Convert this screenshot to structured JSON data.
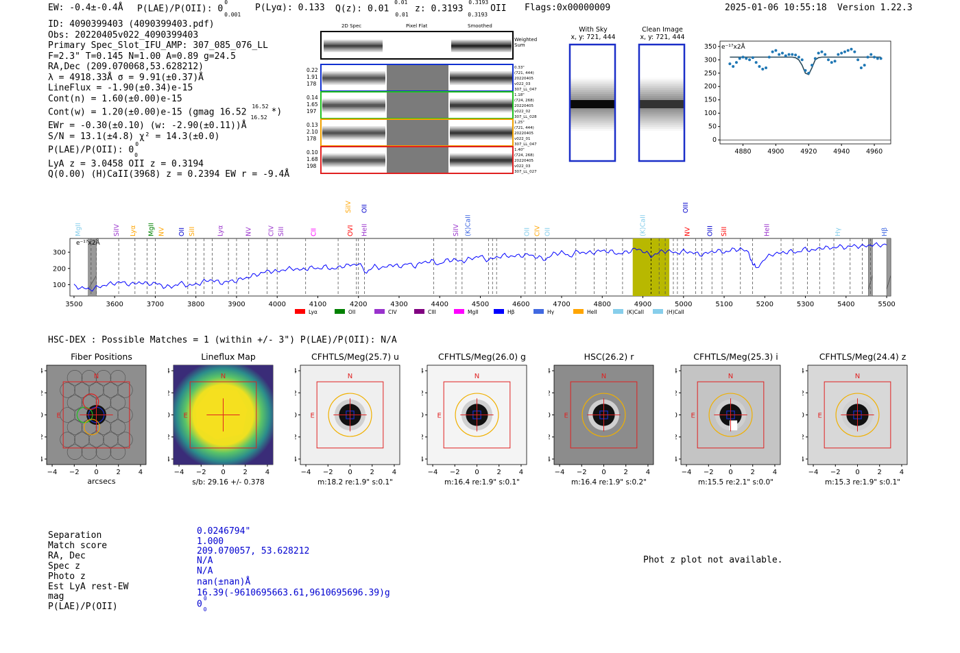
{
  "header": {
    "ew": "EW: -0.4±-0.4Å",
    "plae_label": "P(LAE)/P(OII): 0",
    "plae_sup": "0",
    "plae_sub": "0.001",
    "plya": "P(Lyα): 0.133",
    "qz": "Q(z): 0.01",
    "qz_sup": "0.01",
    "qz_sub": "0.01",
    "z": "z: 0.3193",
    "z_sup": "0.3193",
    "z_sub": "0.3193",
    "z_line": "OII",
    "flags": "Flags:0x00000009",
    "datetime": "2025-01-06 10:55:18",
    "version": "Version 1.22.3"
  },
  "info": {
    "id": "ID: 4090399403 (4090399403.pdf)",
    "obs": "Obs: 20220405v022_4090399403",
    "primary": "Primary Spec_Slot_IFU_AMP: 307_085_076_LL",
    "params": "F=2.3\"  T=0.145  N=1.00  A=0.89  g=24.5",
    "radec": "RA,Dec (209.070068,53.628212)",
    "lambda": "λ = 4918.33Å  σ = 9.91(±0.37)Å",
    "lineflux": "LineFlux = -1.90(±0.34)e-15",
    "contn": "Cont(n) = 1.60(±0.00)e-15",
    "contw": "Cont(w) = 1.20(±0.00)e-15 (gmag 16.52",
    "contw_sup": "16.52",
    "contw_sub": "16.52",
    "contw_end": "*)",
    "ewr": "EWr = -0.30(±0.10) (w: -2.90(±0.11))Å",
    "sn": "S/N = 13.1(±4.8)  χ² = 14.3(±0.0)",
    "plae": "P(LAE)/P(OII): 0",
    "plae_sup": "0",
    "plae_sub": "0",
    "lya_z": "LyA z = 3.0458  OII z = 0.3194",
    "qline": "Q(0.00) (H)CaII(3968) z = 0.2394  EW r = -9.4Å"
  },
  "spec2d": {
    "col_headers": [
      "2D Spec",
      "Pixel Flat",
      "Smoothed"
    ],
    "weighted_label": "Weighted Sum",
    "rows": [
      {
        "left": [
          "0.22",
          "1.91",
          "178"
        ],
        "right": [
          "0.33\"",
          "(721, 444)",
          "20220405",
          "v022_03",
          "307_LL_047"
        ],
        "color": "#1030d0"
      },
      {
        "left": [
          "0.14",
          "1.65",
          "197"
        ],
        "right": [
          "1.18\"",
          "(724, 268)",
          "20220405",
          "v022_02",
          "307_LL_028"
        ],
        "color": "#20c020"
      },
      {
        "left": [
          "0.13",
          "2.10",
          "178"
        ],
        "right": [
          "1.25\"",
          "(721, 444)",
          "20220405",
          "v022_01",
          "307_LL_047"
        ],
        "color": "#f0a000"
      },
      {
        "left": [
          "0.10",
          "1.68",
          "198"
        ],
        "right": [
          "1.40\"",
          "(724, 268)",
          "20220405",
          "v022_03",
          "307_LL_027"
        ],
        "color": "#e02020"
      }
    ]
  },
  "cutouts": {
    "with_sky": "With Sky",
    "with_sky_xy": "x, y: 721, 444",
    "clean": "Clean Image",
    "clean_xy": "x, y: 721, 444"
  },
  "zoom_chart": {
    "type": "line",
    "scale_label": "e⁻¹⁷x2Å",
    "x": [
      4872,
      4874,
      4876,
      4878,
      4880,
      4882,
      4884,
      4886,
      4888,
      4890,
      4892,
      4894,
      4896,
      4898,
      4900,
      4902,
      4904,
      4906,
      4908,
      4910,
      4912,
      4914,
      4916,
      4918,
      4920,
      4922,
      4924,
      4926,
      4928,
      4930,
      4932,
      4934,
      4936,
      4938,
      4940,
      4942,
      4944,
      4946,
      4948,
      4950,
      4952,
      4954,
      4956,
      4958,
      4960,
      4962,
      4964
    ],
    "values": [
      285,
      275,
      290,
      305,
      310,
      305,
      300,
      308,
      290,
      275,
      265,
      270,
      310,
      330,
      335,
      320,
      325,
      315,
      320,
      320,
      318,
      310,
      300,
      260,
      250,
      280,
      305,
      325,
      330,
      320,
      300,
      290,
      295,
      320,
      325,
      330,
      335,
      340,
      330,
      300,
      270,
      280,
      310,
      320,
      310,
      305,
      305
    ],
    "fit": [
      310,
      310,
      310,
      310,
      310,
      310,
      310,
      310,
      310,
      310,
      310,
      310,
      310,
      310,
      310,
      310,
      310,
      310,
      310,
      310,
      308,
      300,
      280,
      250,
      245,
      270,
      300,
      308,
      310,
      310,
      310,
      310,
      310,
      310,
      310,
      310,
      310,
      310,
      310,
      310,
      310,
      310,
      310,
      310,
      310,
      310,
      310
    ],
    "xticks": [
      4880,
      4900,
      4920,
      4940,
      4960
    ],
    "yticks": [
      0,
      50,
      100,
      150,
      200,
      250,
      300,
      350
    ],
    "xlim": [
      4866,
      4970
    ],
    "ylim": [
      -15,
      370
    ]
  },
  "full_chart": {
    "type": "line",
    "scale_label": "e⁻¹⁷x2Å",
    "xticks": [
      3500,
      3600,
      3700,
      3800,
      3900,
      4000,
      4100,
      4200,
      4300,
      4400,
      4500,
      4600,
      4700,
      4800,
      4900,
      5000,
      5100,
      5200,
      5300,
      5400,
      5500
    ],
    "yticks": [
      100,
      200,
      300
    ],
    "xlim": [
      3490,
      5510
    ],
    "ylim": [
      30,
      385
    ],
    "highlight": [
      4875,
      4965
    ],
    "masks": [
      [
        3535,
        3555
      ],
      [
        5455,
        5465
      ],
      [
        5500,
        5510
      ]
    ],
    "anchors": [
      [
        3500,
        90
      ],
      [
        3520,
        80
      ],
      [
        3540,
        70
      ],
      [
        3560,
        85
      ],
      [
        3580,
        100
      ],
      [
        3600,
        110
      ],
      [
        3620,
        115
      ],
      [
        3640,
        100
      ],
      [
        3660,
        115
      ],
      [
        3680,
        105
      ],
      [
        3700,
        110
      ],
      [
        3720,
        90
      ],
      [
        3740,
        85
      ],
      [
        3760,
        110
      ],
      [
        3780,
        95
      ],
      [
        3800,
        100
      ],
      [
        3820,
        120
      ],
      [
        3840,
        130
      ],
      [
        3860,
        110
      ],
      [
        3880,
        120
      ],
      [
        3900,
        125
      ],
      [
        3920,
        140
      ],
      [
        3940,
        155
      ],
      [
        3960,
        170
      ],
      [
        3980,
        185
      ],
      [
        4000,
        180
      ],
      [
        4020,
        195
      ],
      [
        4040,
        200
      ],
      [
        4060,
        190
      ],
      [
        4080,
        205
      ],
      [
        4100,
        200
      ],
      [
        4120,
        210
      ],
      [
        4140,
        195
      ],
      [
        4160,
        215
      ],
      [
        4180,
        220
      ],
      [
        4200,
        230
      ],
      [
        4220,
        175
      ],
      [
        4240,
        215
      ],
      [
        4260,
        200
      ],
      [
        4280,
        225
      ],
      [
        4300,
        210
      ],
      [
        4320,
        230
      ],
      [
        4340,
        215
      ],
      [
        4360,
        240
      ],
      [
        4380,
        245
      ],
      [
        4400,
        225
      ],
      [
        4420,
        255
      ],
      [
        4440,
        250
      ],
      [
        4460,
        245
      ],
      [
        4480,
        265
      ],
      [
        4500,
        275
      ],
      [
        4520,
        250
      ],
      [
        4540,
        270
      ],
      [
        4560,
        280
      ],
      [
        4580,
        275
      ],
      [
        4600,
        280
      ],
      [
        4620,
        285
      ],
      [
        4640,
        270
      ],
      [
        4660,
        255
      ],
      [
        4680,
        290
      ],
      [
        4700,
        300
      ],
      [
        4720,
        275
      ],
      [
        4740,
        305
      ],
      [
        4760,
        295
      ],
      [
        4780,
        300
      ],
      [
        4800,
        310
      ],
      [
        4820,
        305
      ],
      [
        4840,
        290
      ],
      [
        4860,
        300
      ],
      [
        4880,
        320
      ],
      [
        4900,
        310
      ],
      [
        4920,
        275
      ],
      [
        4940,
        300
      ],
      [
        4960,
        310
      ],
      [
        4980,
        295
      ],
      [
        5000,
        305
      ],
      [
        5020,
        300
      ],
      [
        5040,
        285
      ],
      [
        5060,
        295
      ],
      [
        5080,
        310
      ],
      [
        5100,
        300
      ],
      [
        5120,
        315
      ],
      [
        5140,
        320
      ],
      [
        5160,
        300
      ],
      [
        5170,
        230
      ],
      [
        5180,
        200
      ],
      [
        5200,
        260
      ],
      [
        5220,
        290
      ],
      [
        5240,
        295
      ],
      [
        5260,
        305
      ],
      [
        5280,
        300
      ],
      [
        5300,
        320
      ],
      [
        5320,
        310
      ],
      [
        5340,
        330
      ],
      [
        5360,
        325
      ],
      [
        5380,
        335
      ],
      [
        5400,
        330
      ],
      [
        5420,
        340
      ],
      [
        5440,
        335
      ],
      [
        5460,
        345
      ],
      [
        5480,
        345
      ],
      [
        5500,
        345
      ]
    ],
    "lines": [
      {
        "label": "MgII",
        "x": 3510,
        "color": "#87ceeb",
        "row": 0
      },
      {
        "label": "SiIV",
        "x": 3605,
        "color": "#9932cc",
        "row": 0
      },
      {
        "label": "Lyα",
        "x": 3645,
        "color": "#ffa500",
        "row": 0
      },
      {
        "label": "MgII",
        "x": 3690,
        "color": "#008000",
        "row": 0
      },
      {
        "label": "NV",
        "x": 3715,
        "color": "#ffa500",
        "row": 0
      },
      {
        "label": "OII",
        "x": 3765,
        "color": "#0000cd",
        "row": 0
      },
      {
        "label": "SiII",
        "x": 3790,
        "color": "#ffa500",
        "row": 0
      },
      {
        "label": "Lyα",
        "x": 3860,
        "color": "#9932cc",
        "row": 0
      },
      {
        "label": "NV",
        "x": 3930,
        "color": "#9932cc",
        "row": 0
      },
      {
        "label": "CIV",
        "x": 3985,
        "color": "#9932cc",
        "row": 0
      },
      {
        "label": "SiII",
        "x": 4010,
        "color": "#9932cc",
        "row": 0
      },
      {
        "label": "CII",
        "x": 4090,
        "color": "#ff00ff",
        "row": 0
      },
      {
        "label": "SiIV",
        "x": 4175,
        "color": "#ffa500",
        "row": 1
      },
      {
        "label": "OII",
        "x": 4215,
        "color": "#0000cd",
        "row": 1
      },
      {
        "label": "OVI",
        "x": 4180,
        "color": "#ff0000",
        "row": 0
      },
      {
        "label": "HeII",
        "x": 4215,
        "color": "#9932cc",
        "row": 0
      },
      {
        "label": "SiIV",
        "x": 4440,
        "color": "#9932cc",
        "row": 0
      },
      {
        "label": "(K)CaII",
        "x": 4470,
        "color": "#4169e1",
        "row": 0
      },
      {
        "label": "OII",
        "x": 4615,
        "color": "#87ceeb",
        "row": 0
      },
      {
        "label": "CIV",
        "x": 4640,
        "color": "#ffa500",
        "row": 0
      },
      {
        "label": "OII",
        "x": 4665,
        "color": "#87ceeb",
        "row": 0
      },
      {
        "label": "(K)CaII",
        "x": 4900,
        "color": "#87ceeb",
        "row": 0
      },
      {
        "label": "OIII",
        "x": 5005,
        "color": "#0000cd",
        "row": 1
      },
      {
        "label": "NV",
        "x": 5010,
        "color": "#ff0000",
        "row": 0
      },
      {
        "label": "OIII",
        "x": 5065,
        "color": "#0000cd",
        "row": 0
      },
      {
        "label": "SiII",
        "x": 5100,
        "color": "#ff0000",
        "row": 0
      },
      {
        "label": "HeII",
        "x": 5205,
        "color": "#9932cc",
        "row": 0
      },
      {
        "label": "Hγ",
        "x": 5380,
        "color": "#87ceeb",
        "row": 0
      },
      {
        "label": "Hβ",
        "x": 5495,
        "color": "#4169e1",
        "row": 0
      }
    ],
    "dashes": [
      3542,
      3555,
      3610,
      3650,
      3680,
      3700,
      3780,
      3800,
      3820,
      3840,
      3880,
      3900,
      3930,
      3975,
      4000,
      4070,
      4150,
      4195,
      4200,
      4215,
      4385,
      4440,
      4455,
      4520,
      4530,
      4540,
      4610,
      4635,
      4660,
      4735,
      4780,
      4810,
      4850,
      4940,
      4955,
      4975,
      4985,
      5000,
      5030,
      5045,
      5070,
      5095,
      5140,
      5170,
      5240,
      5270,
      5305,
      5335,
      5370,
      5410,
      5440,
      5460
    ],
    "legend": [
      {
        "label": "Lyα",
        "color": "#ff0000"
      },
      {
        "label": "OII",
        "color": "#008000"
      },
      {
        "label": "CIV",
        "color": "#9932cc"
      },
      {
        "label": "CIII",
        "color": "#800080"
      },
      {
        "label": "MgII",
        "color": "#ff00ff"
      },
      {
        "label": "Hβ",
        "color": "#0000ff"
      },
      {
        "label": "Hγ",
        "color": "#4169e1"
      },
      {
        "label": "HeII",
        "color": "#ffa500"
      },
      {
        "label": "(K)CaII",
        "color": "#87ceeb"
      },
      {
        "label": "(H)CaII",
        "color": "#87ceeb"
      }
    ]
  },
  "hsc_line": "HSC-DEX : Possible Matches = 1 (within +/- 3\")  P(LAE)/P(OII): N/A",
  "tiles": [
    {
      "title": "Fiber Positions",
      "caption": "arcsecs",
      "kind": "fiber",
      "bg": "#8e8e8e"
    },
    {
      "title": "Lineflux Map",
      "caption": "s/b: 29.16 +/- 0.378",
      "kind": "flux",
      "bg": "#3a5a96"
    },
    {
      "title": "CFHTLS/Meg(25.7) u",
      "caption": "m:18.2  re:1.9\"  s:0.1\"",
      "kind": "img",
      "bg": "#efefef"
    },
    {
      "title": "CFHTLS/Meg(26.0) g",
      "caption": "m:16.4  re:1.9\"  s:0.1\"",
      "kind": "img",
      "bg": "#f4f4f4"
    },
    {
      "title": "HSC(26.2) r",
      "caption": "m:16.4  re:1.9\"  s:0.2\"",
      "kind": "img",
      "bg": "#8c8c8c"
    },
    {
      "title": "CFHTLS/Meg(25.3) i",
      "caption": "m:15.5  re:2.1\"  s:0.0\"",
      "kind": "img",
      "bg": "#c4c4c4"
    },
    {
      "title": "CFHTLS/Meg(24.4) z",
      "caption": "m:15.3  re:1.9\"  s:0.1\"",
      "kind": "img",
      "bg": "#d8d8d8"
    }
  ],
  "tile_axis": {
    "ticks": [
      "−4",
      "−2",
      "0",
      "2",
      "4"
    ],
    "n_label": "N",
    "e_label": "E"
  },
  "match": {
    "labels": [
      "Separation",
      "Match score",
      "RA, Dec",
      "Spec z",
      "Photo z",
      "Est LyA rest-EW",
      "mag",
      "P(LAE)/P(OII)"
    ],
    "values": [
      "0.0246794\"",
      "1.000",
      "209.070057, 53.628212",
      "N/A",
      "N/A",
      "nan(±nan)Å",
      "16.39(-9610695663.61,9610695696.39)g",
      "0"
    ],
    "plae_sup": "0",
    "plae_sub": "0"
  },
  "photz_note": "Phot z plot not available."
}
